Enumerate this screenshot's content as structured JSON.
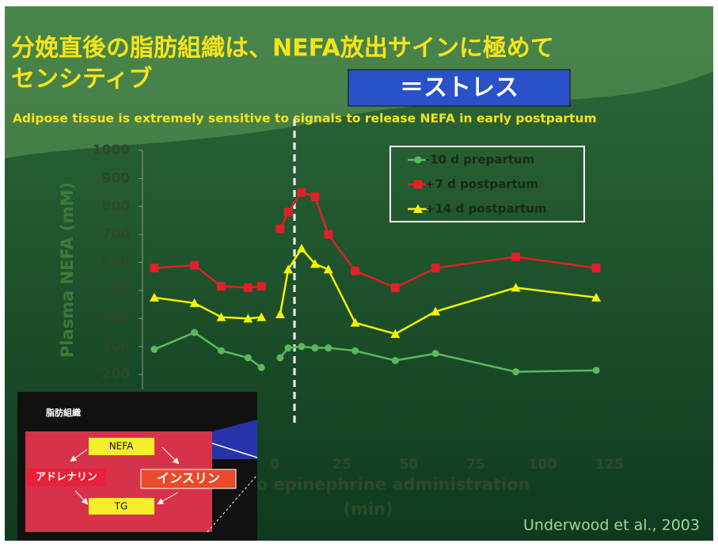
{
  "slide": {
    "title_lines": [
      "分娩直後の脂肪組織は、NEFA放出サインに極めて",
      "センシティブ"
    ],
    "badge": "＝ストレス",
    "subtitle": "Adipose tissue is extremely sensitive to signals to release NEFA in early  postpartum",
    "citation": "Underwood et al., 2003",
    "inset": {
      "title": "脂肪組織",
      "nefa": "NEFA",
      "adrenaline": "アドレナリン",
      "insulin": "インスリン",
      "tg": "TG"
    }
  },
  "chart_data": {
    "type": "line",
    "ylabel": "Plasma NEFA (mM)",
    "xlabel": [
      "Time relative to epinephrine administration",
      "(min)"
    ],
    "x": [
      -45,
      -30,
      -20,
      -10,
      -5,
      0,
      2,
      5,
      10,
      15,
      20,
      30,
      45,
      60,
      90,
      120
    ],
    "series": [
      {
        "name": "-10 d prepartum",
        "color": "#5cb85c",
        "marker": "circle",
        "values": [
          290,
          350,
          285,
          260,
          225,
          null,
          260,
          295,
          300,
          295,
          295,
          285,
          250,
          275,
          210,
          215
        ]
      },
      {
        "name": "+7 d postpartum",
        "color": "#e0202a",
        "marker": "square",
        "values": [
          580,
          590,
          515,
          510,
          515,
          null,
          720,
          780,
          850,
          835,
          700,
          570,
          510,
          580,
          620,
          580
        ]
      },
      {
        "name": "+14 d postpartum",
        "color": "#f2f20a",
        "marker": "triangle",
        "values": [
          475,
          455,
          405,
          400,
          405,
          null,
          415,
          575,
          650,
          595,
          575,
          385,
          345,
          425,
          510,
          475
        ]
      }
    ],
    "xlim": [
      -50,
      125
    ],
    "xticks": [
      0,
      25,
      50,
      75,
      100,
      125
    ],
    "ylim": [
      175,
      1000
    ],
    "yticks": [
      200,
      300,
      400,
      500,
      600,
      700,
      800,
      900,
      1000
    ],
    "legend": "upper right"
  }
}
